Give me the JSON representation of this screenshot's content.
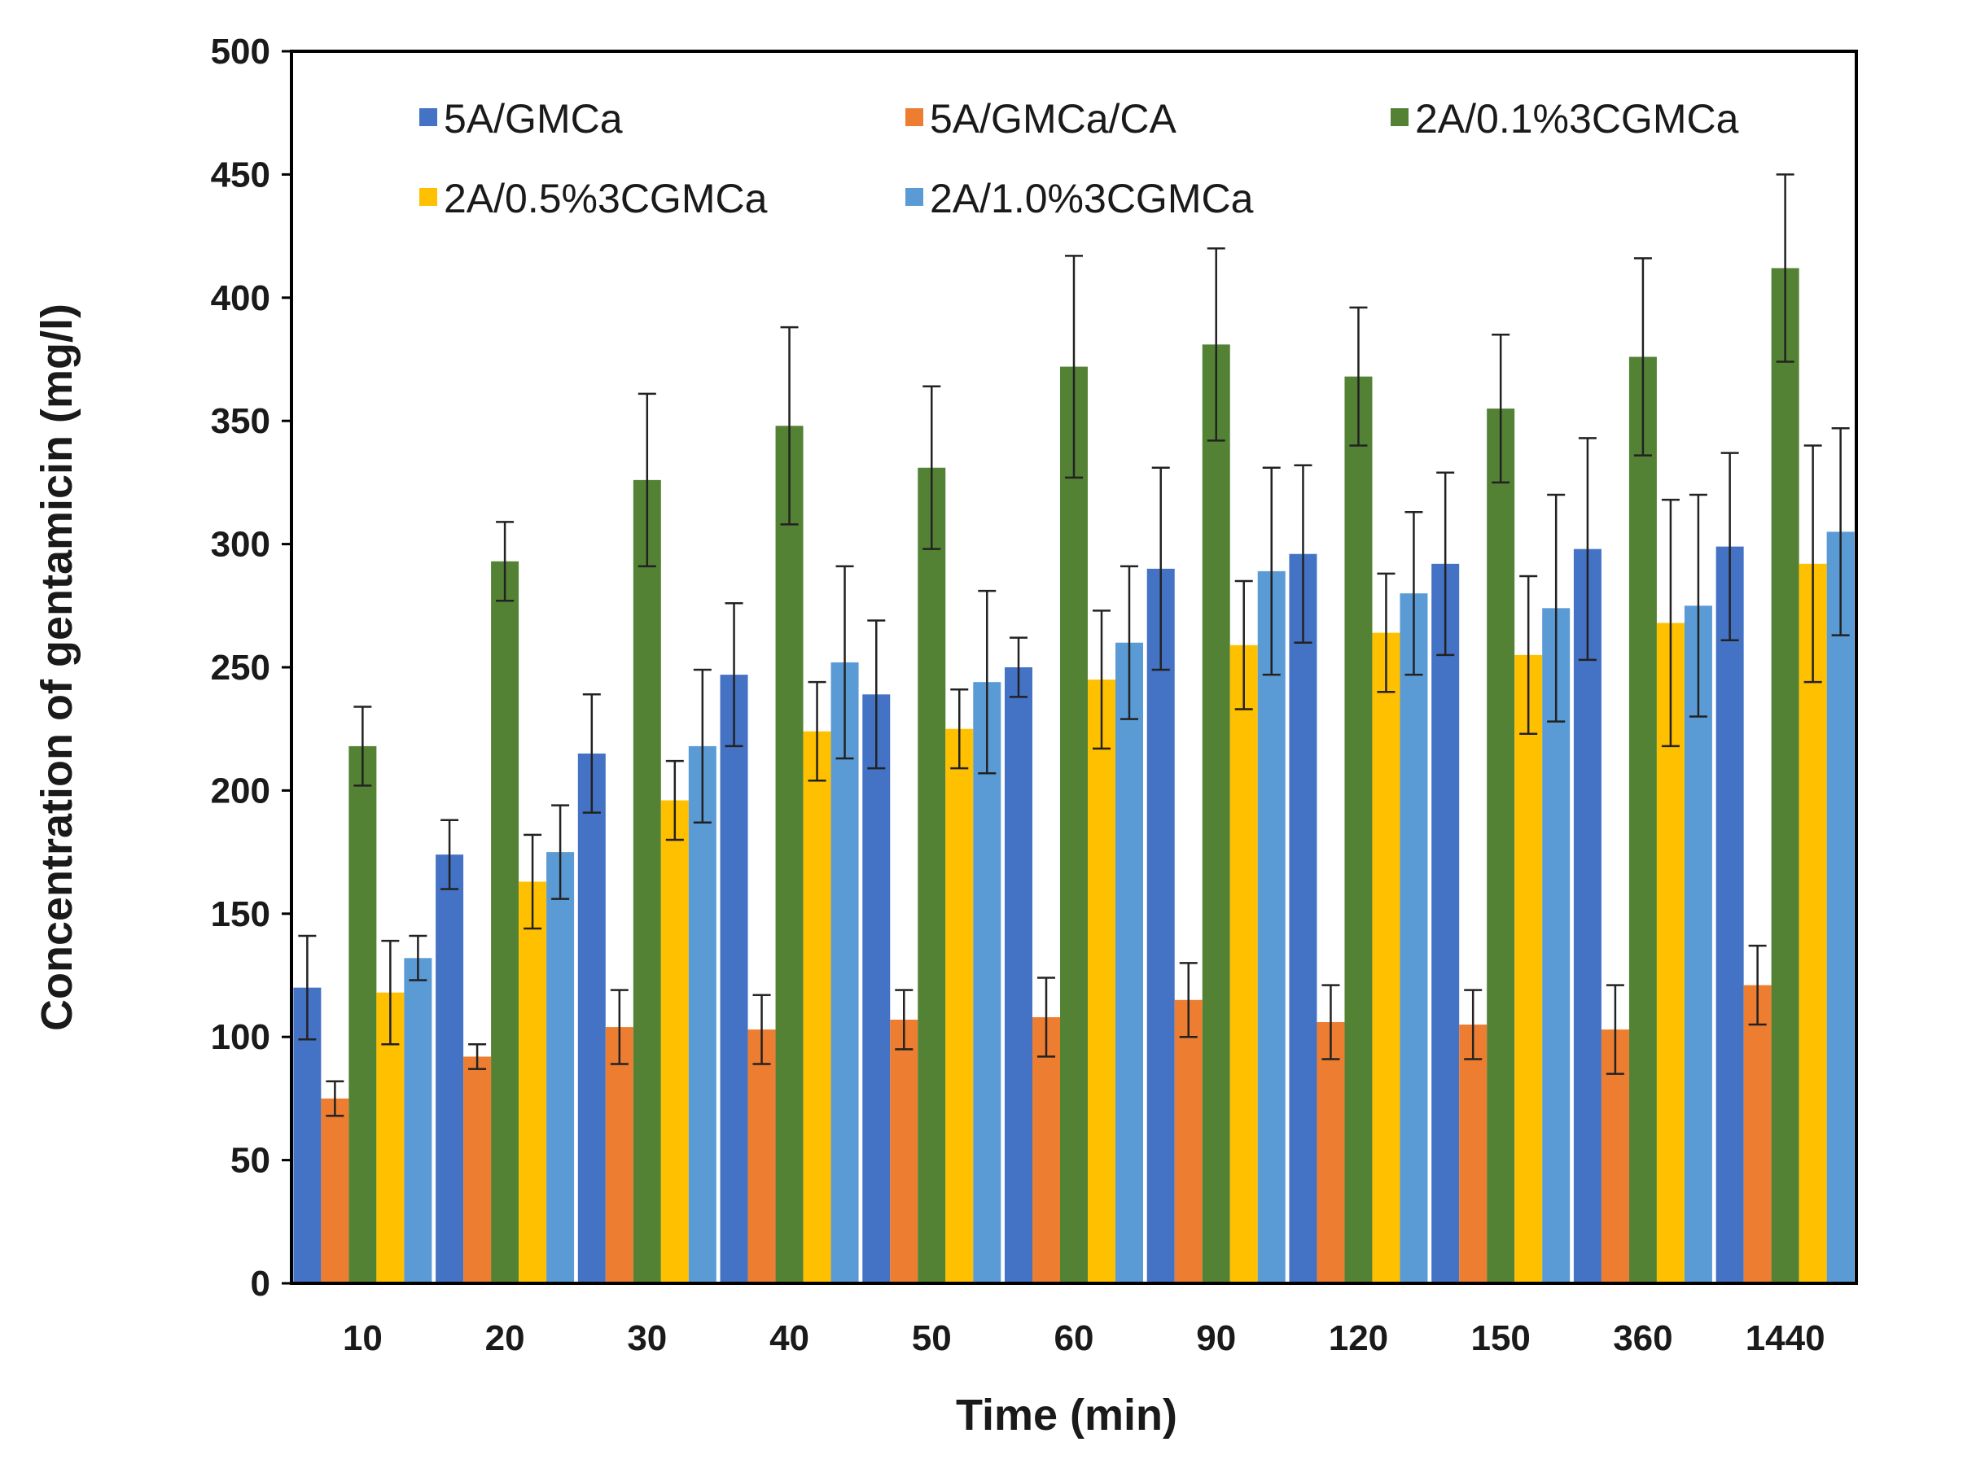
{
  "chart_data": {
    "type": "bar",
    "title": "",
    "xlabel": "Time (min)",
    "ylabel": "Concentration of gentamicin (mg/l)",
    "ylim": [
      0,
      500
    ],
    "yticks": [
      0,
      50,
      100,
      150,
      200,
      250,
      300,
      350,
      400,
      450,
      500
    ],
    "grid": false,
    "legend_position": "top",
    "error_bars": true,
    "categories": [
      "10",
      "20",
      "30",
      "40",
      "50",
      "60",
      "90",
      "120",
      "150",
      "360",
      "1440"
    ],
    "series": [
      {
        "name": "5A/GMCa",
        "color": "#4472C4",
        "values": [
          120,
          174,
          215,
          247,
          239,
          250,
          290,
          296,
          292,
          298,
          299
        ],
        "errors": [
          21,
          14,
          24,
          29,
          30,
          12,
          41,
          36,
          37,
          45,
          38
        ]
      },
      {
        "name": "5A/GMCa/CA",
        "color": "#ED7D31",
        "values": [
          75,
          92,
          104,
          103,
          107,
          108,
          115,
          106,
          105,
          103,
          121
        ],
        "errors": [
          7,
          5,
          15,
          14,
          12,
          16,
          15,
          15,
          14,
          18,
          16
        ]
      },
      {
        "name": "2A/0.1%3CGMCa",
        "color": "#548235",
        "values": [
          218,
          293,
          326,
          348,
          331,
          372,
          381,
          368,
          355,
          376,
          412
        ],
        "errors": [
          16,
          16,
          35,
          40,
          33,
          45,
          39,
          28,
          30,
          40,
          38
        ]
      },
      {
        "name": "2A/0.5%3CGMCa",
        "color": "#FFC000",
        "values": [
          118,
          163,
          196,
          224,
          225,
          245,
          259,
          264,
          255,
          268,
          292
        ],
        "errors": [
          21,
          19,
          16,
          20,
          16,
          28,
          26,
          24,
          32,
          50,
          48
        ]
      },
      {
        "name": "2A/1.0%3CGMCa",
        "color": "#5B9BD5",
        "values": [
          132,
          175,
          218,
          252,
          244,
          260,
          289,
          280,
          274,
          275,
          305
        ],
        "errors": [
          9,
          19,
          31,
          39,
          37,
          31,
          42,
          33,
          46,
          45,
          42
        ]
      }
    ]
  }
}
